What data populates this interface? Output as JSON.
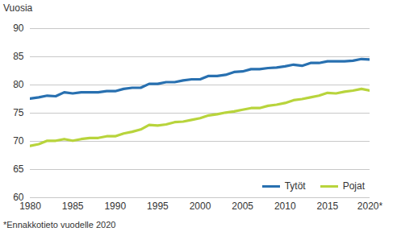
{
  "chart_data": {
    "type": "line",
    "ylabel": "Vuosia",
    "caption": "*Ennakkotieto vuodelle 2020",
    "x": [
      1980,
      1981,
      1982,
      1983,
      1984,
      1985,
      1986,
      1987,
      1988,
      1989,
      1990,
      1991,
      1992,
      1993,
      1994,
      1995,
      1996,
      1997,
      1998,
      1999,
      2000,
      2001,
      2002,
      2003,
      2004,
      2005,
      2006,
      2007,
      2008,
      2009,
      2010,
      2011,
      2012,
      2013,
      2014,
      2015,
      2016,
      2017,
      2018,
      2019,
      2020
    ],
    "series": [
      {
        "name": "Tytöt",
        "color": "#2870b0",
        "values": [
          77.6,
          77.8,
          78.1,
          78.0,
          78.7,
          78.5,
          78.7,
          78.7,
          78.7,
          78.9,
          78.9,
          79.3,
          79.5,
          79.5,
          80.2,
          80.2,
          80.5,
          80.5,
          80.8,
          81.0,
          81.0,
          81.6,
          81.6,
          81.8,
          82.3,
          82.4,
          82.8,
          82.8,
          83.0,
          83.1,
          83.3,
          83.6,
          83.4,
          83.9,
          83.9,
          84.2,
          84.2,
          84.2,
          84.3,
          84.6,
          84.5
        ]
      },
      {
        "name": "Pojat",
        "color": "#b8d43c",
        "values": [
          69.2,
          69.5,
          70.1,
          70.1,
          70.4,
          70.1,
          70.4,
          70.6,
          70.6,
          70.9,
          70.9,
          71.4,
          71.7,
          72.1,
          72.9,
          72.8,
          73.0,
          73.4,
          73.5,
          73.8,
          74.1,
          74.6,
          74.8,
          75.1,
          75.3,
          75.6,
          75.9,
          75.9,
          76.3,
          76.5,
          76.8,
          77.3,
          77.5,
          77.8,
          78.1,
          78.6,
          78.5,
          78.8,
          79.0,
          79.3,
          79.0
        ]
      }
    ],
    "xlim": [
      1980,
      2020
    ],
    "xticks": [
      1980,
      1985,
      1990,
      1995,
      2000,
      2005,
      2010,
      2015,
      {
        "value": 2020,
        "label": "2020*"
      }
    ],
    "ylim": [
      60,
      90
    ],
    "yticks": [
      60,
      65,
      70,
      75,
      80,
      85,
      90
    ],
    "grid": true,
    "legend": "bottom-right"
  }
}
